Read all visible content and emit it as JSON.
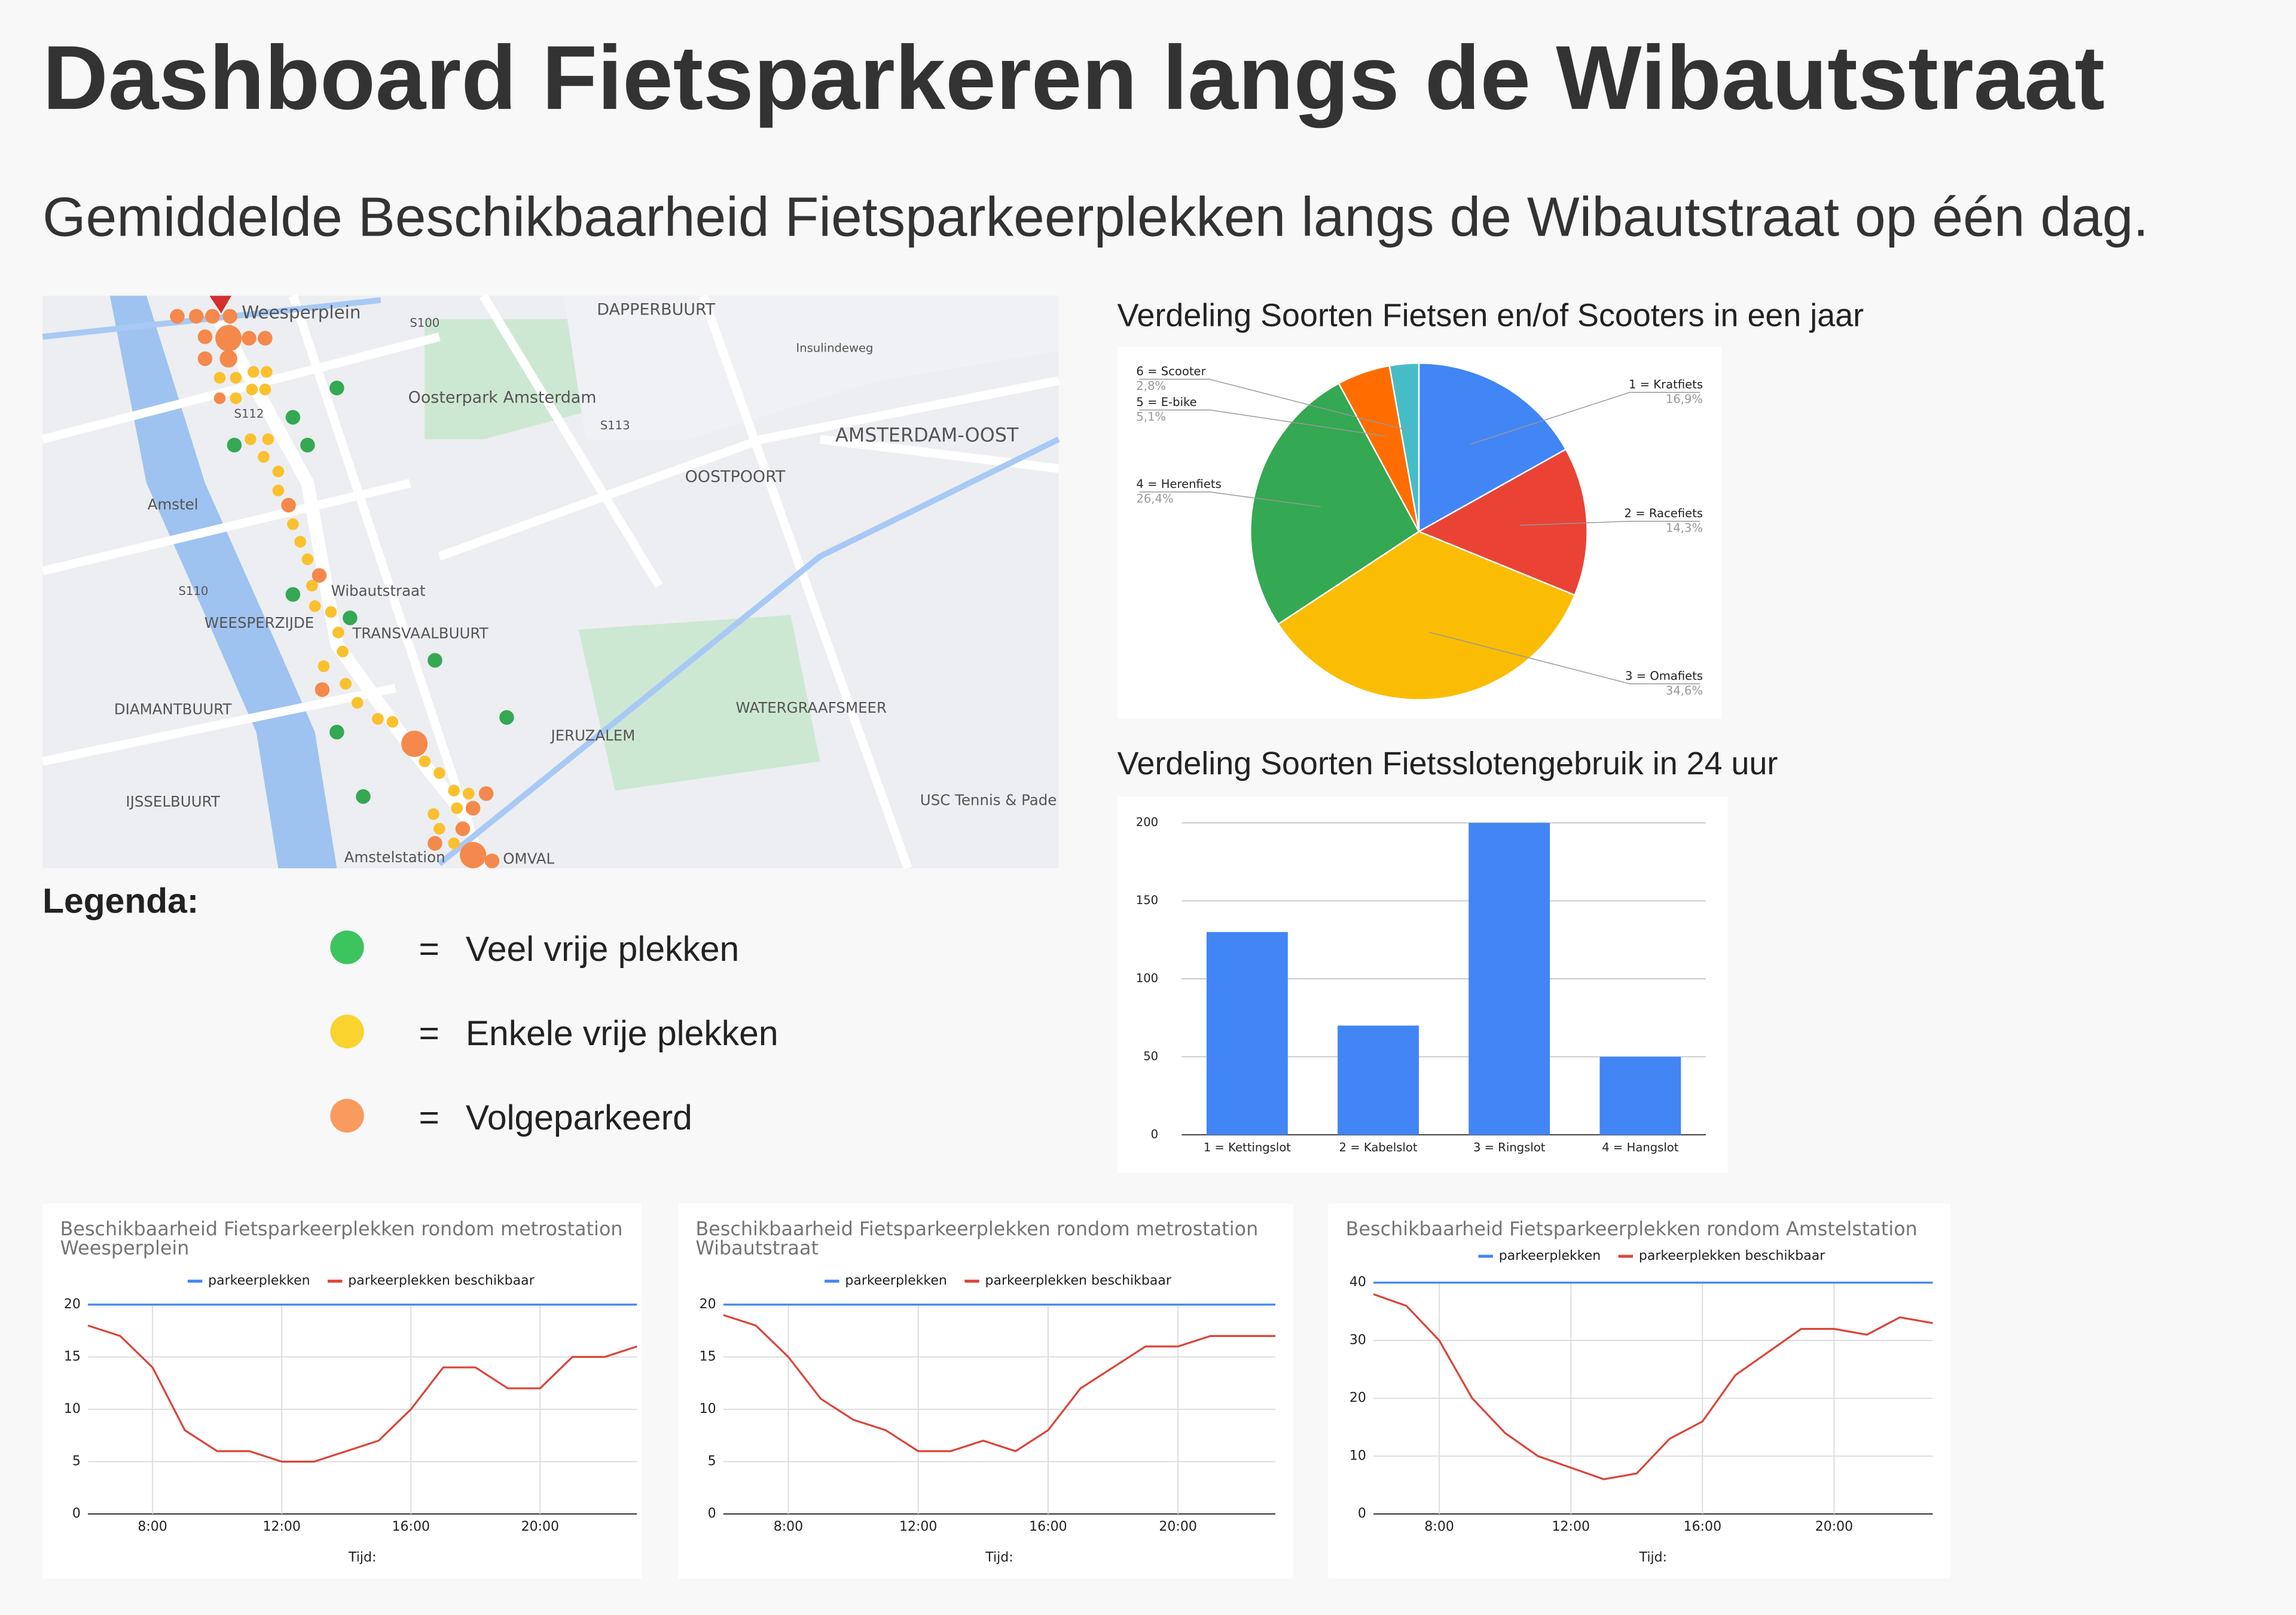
{
  "header": {
    "title": "Dashboard Fietsparkeren langs de Wibautstraat",
    "subtitle": "Gemiddelde Beschikbaarheid Fietsparkeerplekken langs de Wibautstraat op één dag."
  },
  "map": {
    "labels": [
      "Weesperplein",
      "DAPPERBUURT",
      "Insulindeweg",
      "Oosterpark Amsterdam",
      "AMSTERDAM-OOST",
      "OOSTPOORT",
      "Amstel",
      "Wibautstraat",
      "WEESPERZIJDE",
      "TRANSVAALBUURT",
      "DIAMANTBUURT",
      "JERUZALEM",
      "WATERGRAAFSMEER",
      "IJSSELBUURT",
      "Amstelstation",
      "OMVAL",
      "USC Tennis & Pade",
      "S100",
      "S112",
      "S113",
      "S110"
    ]
  },
  "legend": {
    "title": "Legenda:",
    "separator": "=",
    "items": [
      {
        "text": "Veel vrije plekken",
        "color": "#3cc45f"
      },
      {
        "text": "Enkele vrije plekken",
        "color": "#fbd32e"
      },
      {
        "text": "Volgeparkeerd",
        "color": "#f99a5f"
      }
    ]
  },
  "chart_data": [
    {
      "type": "pie",
      "title": "Verdeling Soorten Fietsen en/of Scooters in een jaar",
      "categories": [
        "1 = Kratfiets",
        "2 = Racefiets",
        "3 = Omafiets",
        "4 = Herenfiets",
        "5 = E-bike",
        "6 = Scooter"
      ],
      "values": [
        16.9,
        14.3,
        34.6,
        26.4,
        5.1,
        2.8
      ],
      "value_labels": [
        "16,9%",
        "14,3%",
        "34,6%",
        "26,4%",
        "5,1%",
        "2,8%"
      ],
      "colors": [
        "#4285f4",
        "#ea4335",
        "#fbbc04",
        "#34a853",
        "#ff6d01",
        "#46bdc6"
      ]
    },
    {
      "type": "bar",
      "title": "Verdeling Soorten Fietsslotengebruik in 24 uur",
      "categories": [
        "1 = Kettingslot",
        "2 = Kabelslot",
        "3 = Ringslot",
        "4 = Hangslot"
      ],
      "values": [
        130,
        70,
        200,
        50
      ],
      "color": "#4285f4",
      "ylim": [
        0,
        200
      ],
      "yticks": [
        0,
        50,
        100,
        150,
        200
      ],
      "grid": true
    },
    {
      "type": "line",
      "title": "Beschikbaarheid Fietsparkeerplekken rondom metrostation Weesperplein",
      "xlabel": "Tijd:",
      "x": [
        6,
        7,
        8,
        9,
        10,
        11,
        12,
        13,
        14,
        15,
        16,
        17,
        18,
        19,
        20,
        21,
        22,
        23
      ],
      "xlim": [
        6,
        23
      ],
      "xticks": [
        {
          "value": 8,
          "label": "8:00"
        },
        {
          "value": 12,
          "label": "12:00"
        },
        {
          "value": 16,
          "label": "16:00"
        },
        {
          "value": 20,
          "label": "20:00"
        }
      ],
      "ylim": [
        0,
        20
      ],
      "yticks": [
        0,
        5,
        10,
        15,
        20
      ],
      "grid": true,
      "series": [
        {
          "name": "parkeerplekken",
          "color": "#4285f4",
          "values": [
            20,
            20,
            20,
            20,
            20,
            20,
            20,
            20,
            20,
            20,
            20,
            20,
            20,
            20,
            20,
            20,
            20,
            20
          ]
        },
        {
          "name": "parkeerplekken beschikbaar",
          "color": "#db4437",
          "values": [
            18,
            17,
            14,
            8,
            6,
            6,
            5,
            5,
            6,
            7,
            10,
            14,
            14,
            12,
            12,
            15,
            15,
            16
          ]
        }
      ]
    },
    {
      "type": "line",
      "title": "Beschikbaarheid Fietsparkeerplekken rondom metrostation Wibautstraat",
      "xlabel": "Tijd:",
      "x": [
        6,
        7,
        8,
        9,
        10,
        11,
        12,
        13,
        14,
        15,
        16,
        17,
        18,
        19,
        20,
        21,
        22,
        23
      ],
      "xlim": [
        6,
        23
      ],
      "xticks": [
        {
          "value": 8,
          "label": "8:00"
        },
        {
          "value": 12,
          "label": "12:00"
        },
        {
          "value": 16,
          "label": "16:00"
        },
        {
          "value": 20,
          "label": "20:00"
        }
      ],
      "ylim": [
        0,
        20
      ],
      "yticks": [
        0,
        5,
        10,
        15,
        20
      ],
      "grid": true,
      "series": [
        {
          "name": "parkeerplekken",
          "color": "#4285f4",
          "values": [
            20,
            20,
            20,
            20,
            20,
            20,
            20,
            20,
            20,
            20,
            20,
            20,
            20,
            20,
            20,
            20,
            20,
            20
          ]
        },
        {
          "name": "parkeerplekken beschikbaar",
          "color": "#db4437",
          "values": [
            19,
            18,
            15,
            11,
            9,
            8,
            6,
            6,
            7,
            6,
            8,
            12,
            14,
            16,
            16,
            17,
            17,
            17
          ]
        }
      ]
    },
    {
      "type": "line",
      "title": "Beschikbaarheid Fietsparkeerplekken rondom Amstelstation",
      "xlabel": "Tijd:",
      "x": [
        6,
        7,
        8,
        9,
        10,
        11,
        12,
        13,
        14,
        15,
        16,
        17,
        18,
        19,
        20,
        21,
        22,
        23
      ],
      "xlim": [
        6,
        23
      ],
      "xticks": [
        {
          "value": 8,
          "label": "8:00"
        },
        {
          "value": 12,
          "label": "12:00"
        },
        {
          "value": 16,
          "label": "16:00"
        },
        {
          "value": 20,
          "label": "20:00"
        }
      ],
      "ylim": [
        0,
        40
      ],
      "yticks": [
        0,
        10,
        20,
        30,
        40
      ],
      "grid": true,
      "series": [
        {
          "name": "parkeerplekken",
          "color": "#4285f4",
          "values": [
            40,
            40,
            40,
            40,
            40,
            40,
            40,
            40,
            40,
            40,
            40,
            40,
            40,
            40,
            40,
            40,
            40,
            40
          ]
        },
        {
          "name": "parkeerplekken beschikbaar",
          "color": "#db4437",
          "values": [
            38,
            36,
            30,
            20,
            14,
            10,
            8,
            6,
            7,
            13,
            16,
            24,
            28,
            32,
            32,
            31,
            34,
            33
          ]
        }
      ]
    }
  ]
}
